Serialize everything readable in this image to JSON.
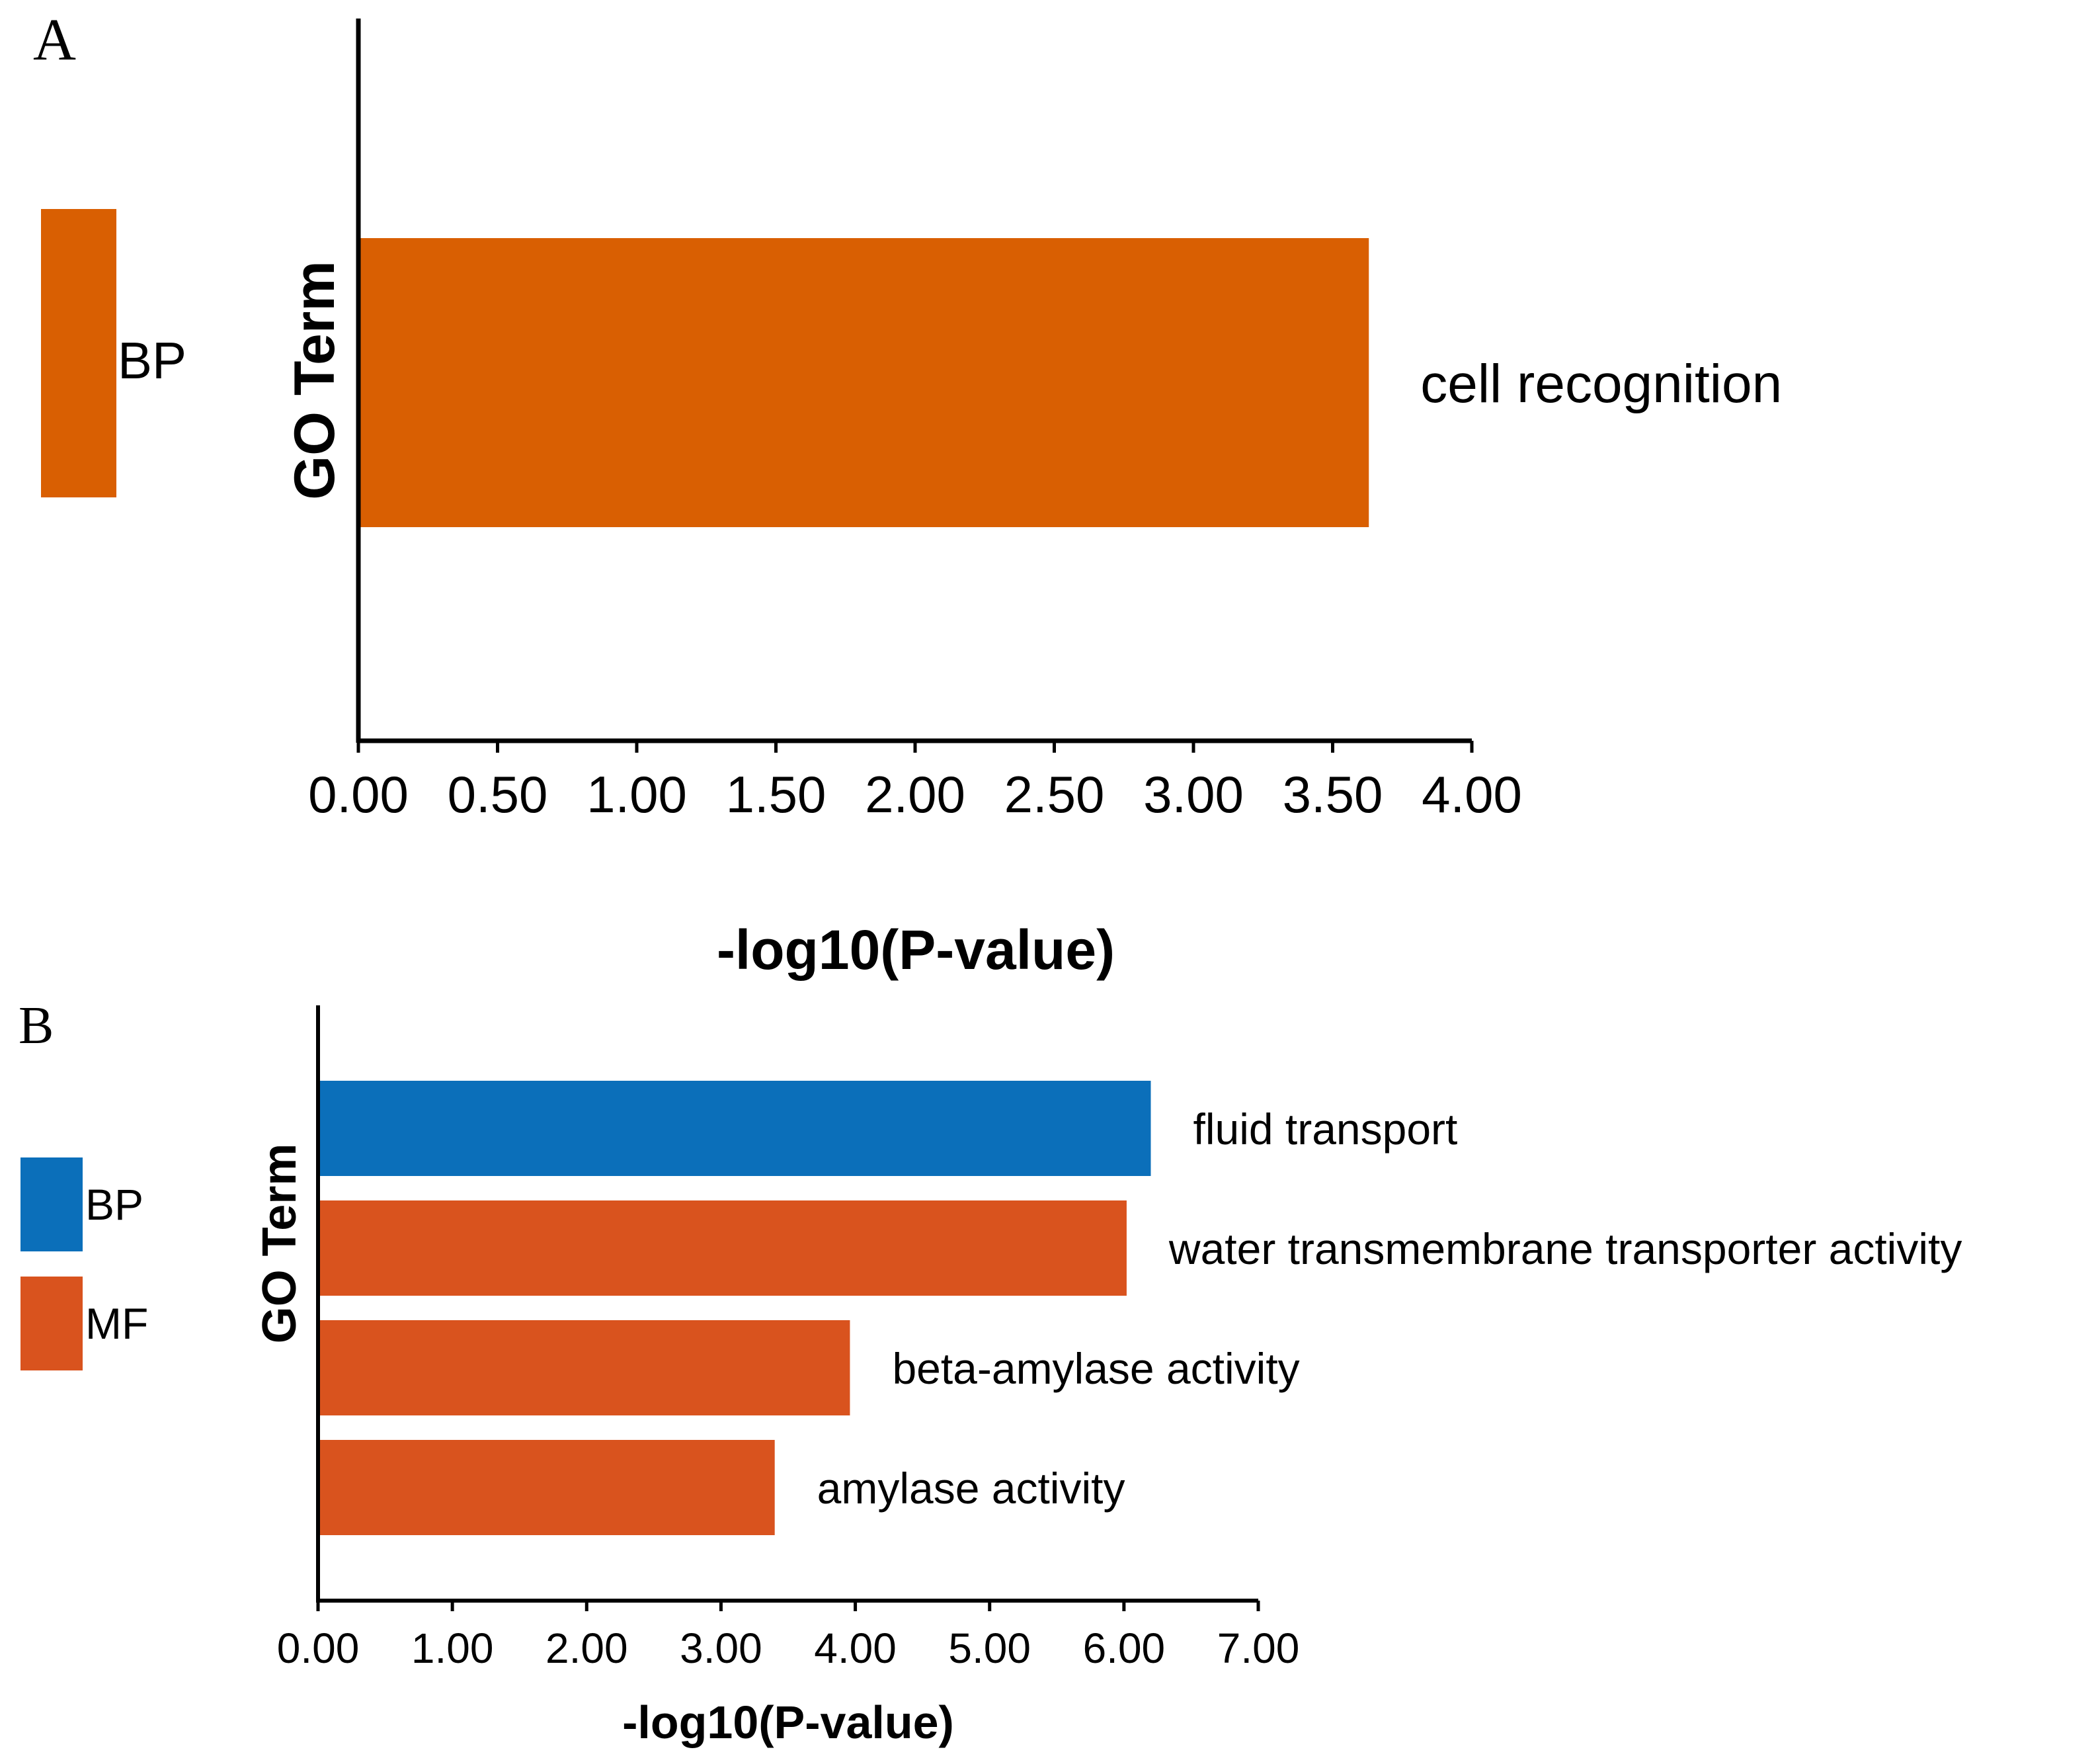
{
  "chart_data": [
    {
      "type": "bar",
      "orientation": "horizontal",
      "panel_label": "A",
      "categories": [
        "cell recognition"
      ],
      "values": [
        3.63
      ],
      "category_groups": [
        "BP"
      ],
      "xlabel": "-log10(P-value)",
      "ylabel": "GO Term",
      "xlim": [
        0,
        4
      ],
      "xticks": [
        "0.00",
        "0.50",
        "1.00",
        "1.50",
        "2.00",
        "2.50",
        "3.00",
        "3.50",
        "4.00"
      ],
      "legend": [
        {
          "label": "BP",
          "color": "#d95f02"
        }
      ],
      "legend_position": "left",
      "grid": false
    },
    {
      "type": "bar",
      "orientation": "horizontal",
      "panel_label": "B",
      "categories": [
        "fluid transport",
        "water transmembrane transporter activity",
        "beta-amylase activity",
        "amylase activity"
      ],
      "values": [
        6.2,
        6.02,
        3.96,
        3.4
      ],
      "category_groups": [
        "BP",
        "MF",
        "MF",
        "MF"
      ],
      "xlabel": "-log10(P-value)",
      "ylabel": "GO Term",
      "xlim": [
        0,
        7
      ],
      "xticks": [
        "0.00",
        "1.00",
        "2.00",
        "3.00",
        "4.00",
        "5.00",
        "6.00",
        "7.00"
      ],
      "legend": [
        {
          "label": "BP",
          "color": "#0b6fba"
        },
        {
          "label": "MF",
          "color": "#d9531e"
        }
      ],
      "legend_position": "left",
      "grid": false
    }
  ]
}
